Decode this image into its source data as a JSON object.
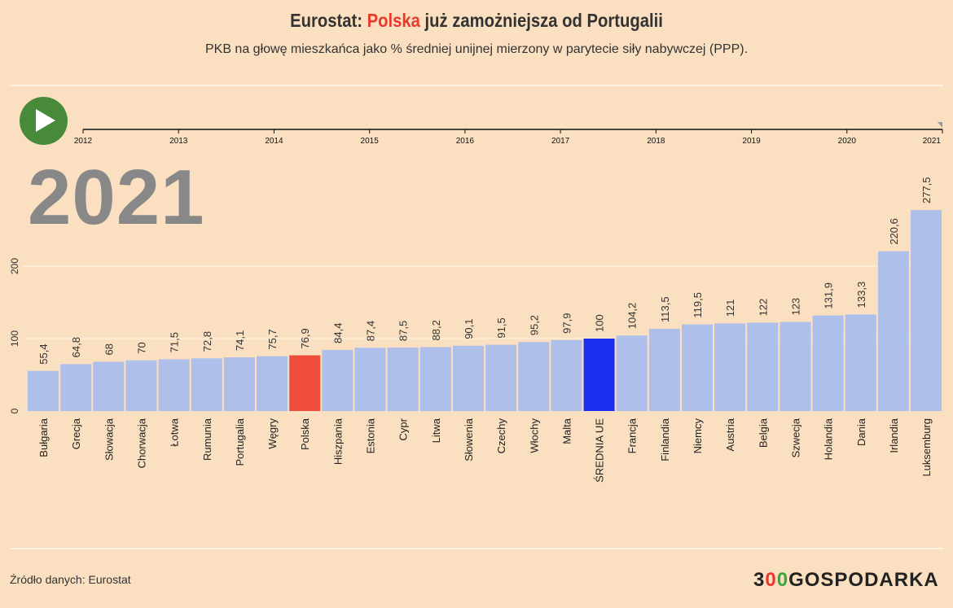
{
  "header": {
    "title_prefix": "Eurostat: ",
    "title_highlight": "Polska",
    "title_suffix": " już zamożniejsza od Portugalii",
    "subtitle": "PKB na głowę mieszkańca jako % średniej unijnej mierzony w parytecie siły nabywczej (PPP)."
  },
  "player": {
    "play_icon": "play-icon",
    "current_year": "2021",
    "years": [
      "2012",
      "2013",
      "2014",
      "2015",
      "2016",
      "2017",
      "2018",
      "2019",
      "2020",
      "2021"
    ]
  },
  "footer": {
    "source": "Źródło danych: Eurostat",
    "logo": "300GOSPODARKA"
  },
  "colors": {
    "default": "#aebfea",
    "highlight": "#ef4c3c",
    "eu": "#1b2ff0"
  },
  "chart_data": {
    "type": "bar",
    "categories": [
      "Bułgaria",
      "Grecja",
      "Słowacja",
      "Chorwacja",
      "Łotwa",
      "Rumunia",
      "Portugalia",
      "Węgry",
      "Polska",
      "Hiszpania",
      "Estonia",
      "Cypr",
      "Litwa",
      "Słowenia",
      "Czechy",
      "Włochy",
      "Malta",
      "ŚREDNIA UE",
      "Francja",
      "Finlandia",
      "Niemcy",
      "Austria",
      "Belgia",
      "Szwecja",
      "Holandia",
      "Dania",
      "Irlandia",
      "Luksemburg"
    ],
    "values": [
      55.4,
      64.8,
      68,
      70,
      71.5,
      72.8,
      74.1,
      75.7,
      76.9,
      84.4,
      87.4,
      87.5,
      88.2,
      90.1,
      91.5,
      95.2,
      97.9,
      100,
      104.2,
      113.5,
      119.5,
      121,
      122,
      123,
      131.9,
      133.3,
      220.6,
      277.5
    ],
    "labels": [
      "55,4",
      "64,8",
      "68",
      "70",
      "71,5",
      "72,8",
      "74,1",
      "75,7",
      "76,9",
      "84,4",
      "87,4",
      "87,5",
      "88,2",
      "90,1",
      "91,5",
      "95,2",
      "97,9",
      "100",
      "104,2",
      "113,5",
      "119,5",
      "121",
      "122",
      "123",
      "131,9",
      "133,3",
      "220,6",
      "277,5"
    ],
    "highlight": {
      "Polska": "highlight",
      "ŚREDNIA UE": "eu"
    },
    "yticks": [
      "0",
      "100",
      "200"
    ],
    "ylim": [
      0,
      280
    ],
    "grid": true
  }
}
